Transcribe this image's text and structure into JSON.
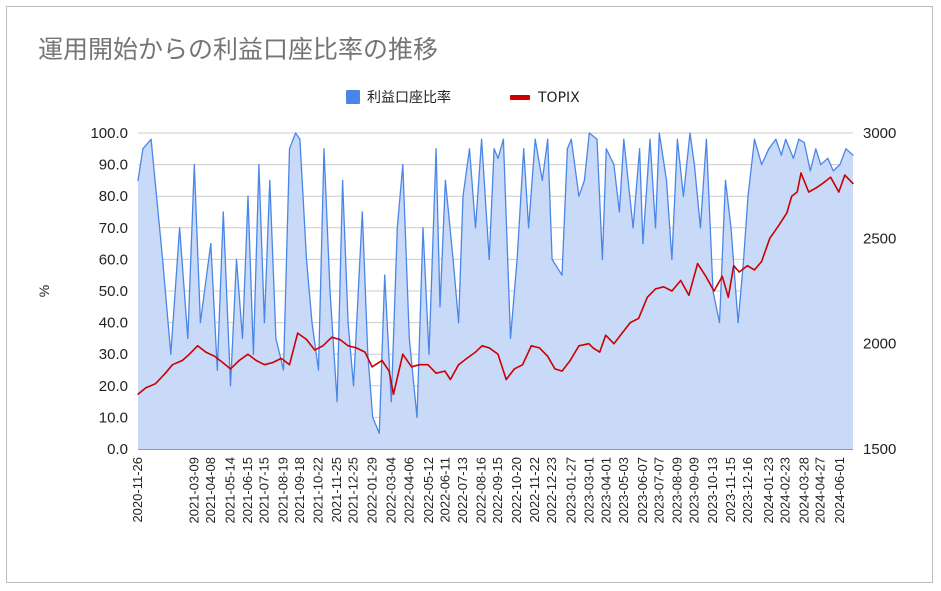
{
  "chart_data": {
    "type": "line",
    "title": "運用開始からの利益口座比率の推移",
    "ylabel_left": "%",
    "ylim_left": [
      0,
      100
    ],
    "yticks_left": [
      "0.0",
      "10.0",
      "20.0",
      "30.0",
      "40.0",
      "50.0",
      "60.0",
      "70.0",
      "80.0",
      "90.0",
      "100.0"
    ],
    "ylim_right": [
      1500,
      3000
    ],
    "yticks_right": [
      "1500",
      "2000",
      "2500",
      "3000"
    ],
    "xlim": [
      "2020-11-26",
      "2024-06-25"
    ],
    "x_tick_labels": [
      "2020-11-26",
      "2021-03-09",
      "2021-04-08",
      "2021-05-14",
      "2021-06-15",
      "2021-07-15",
      "2021-08-19",
      "2021-09-18",
      "2021-10-22",
      "2021-11-25",
      "2021-12-25",
      "2022-01-29",
      "2022-03-04",
      "2022-04-06",
      "2022-05-12",
      "2022-06-11",
      "2022-07-13",
      "2022-08-16",
      "2022-09-15",
      "2022-10-20",
      "2022-11-22",
      "2022-12-23",
      "2023-01-27",
      "2023-03-01",
      "2023-04-01",
      "2023-05-03",
      "2023-06-07",
      "2023-07-07",
      "2023-08-09",
      "2023-09-09",
      "2023-10-13",
      "2023-11-15",
      "2023-12-16",
      "2024-01-23",
      "2024-02-23",
      "2024-03-28",
      "2024-04-27",
      "2024-06-01"
    ],
    "grid": true,
    "legend_position": "top",
    "series": [
      {
        "name": "利益口座比率",
        "axis": "left",
        "style": "area",
        "color": "#4a86e8",
        "fill": "#c9daf8",
        "x": [
          "2020-11-26",
          "2020-12-05",
          "2020-12-20",
          "2021-01-10",
          "2021-01-25",
          "2021-02-10",
          "2021-02-25",
          "2021-03-09",
          "2021-03-20",
          "2021-04-08",
          "2021-04-20",
          "2021-05-01",
          "2021-05-14",
          "2021-05-25",
          "2021-06-05",
          "2021-06-15",
          "2021-06-25",
          "2021-07-05",
          "2021-07-15",
          "2021-07-25",
          "2021-08-05",
          "2021-08-19",
          "2021-08-30",
          "2021-09-10",
          "2021-09-18",
          "2021-09-30",
          "2021-10-10",
          "2021-10-22",
          "2021-11-01",
          "2021-11-12",
          "2021-11-25",
          "2021-12-05",
          "2021-12-15",
          "2021-12-25",
          "2022-01-10",
          "2022-01-20",
          "2022-01-29",
          "2022-02-10",
          "2022-02-20",
          "2022-03-04",
          "2022-03-15",
          "2022-03-25",
          "2022-04-06",
          "2022-04-20",
          "2022-05-01",
          "2022-05-12",
          "2022-05-25",
          "2022-06-01",
          "2022-06-11",
          "2022-06-25",
          "2022-07-05",
          "2022-07-13",
          "2022-07-25",
          "2022-08-05",
          "2022-08-16",
          "2022-08-30",
          "2022-09-08",
          "2022-09-15",
          "2022-09-25",
          "2022-10-08",
          "2022-10-20",
          "2022-11-01",
          "2022-11-10",
          "2022-11-22",
          "2022-12-05",
          "2022-12-15",
          "2022-12-23",
          "2023-01-10",
          "2023-01-20",
          "2023-01-27",
          "2023-02-10",
          "2023-02-20",
          "2023-03-01",
          "2023-03-15",
          "2023-03-25",
          "2023-04-01",
          "2023-04-15",
          "2023-04-25",
          "2023-05-03",
          "2023-05-20",
          "2023-06-01",
          "2023-06-07",
          "2023-06-20",
          "2023-06-30",
          "2023-07-07",
          "2023-07-20",
          "2023-07-30",
          "2023-08-09",
          "2023-08-20",
          "2023-09-01",
          "2023-09-09",
          "2023-09-20",
          "2023-10-01",
          "2023-10-13",
          "2023-10-25",
          "2023-11-05",
          "2023-11-15",
          "2023-11-28",
          "2023-12-08",
          "2023-12-16",
          "2023-12-28",
          "2024-01-10",
          "2024-01-23",
          "2024-02-05",
          "2024-02-15",
          "2024-02-23",
          "2024-03-08",
          "2024-03-18",
          "2024-03-28",
          "2024-04-08",
          "2024-04-18",
          "2024-04-27",
          "2024-05-10",
          "2024-05-20",
          "2024-06-01",
          "2024-06-12",
          "2024-06-25"
        ],
        "values": [
          85,
          95,
          98,
          60,
          30,
          70,
          35,
          90,
          40,
          65,
          25,
          75,
          20,
          60,
          35,
          80,
          30,
          90,
          40,
          85,
          35,
          25,
          95,
          100,
          98,
          60,
          40,
          25,
          95,
          50,
          15,
          85,
          40,
          20,
          75,
          30,
          10,
          5,
          55,
          15,
          70,
          90,
          35,
          10,
          70,
          30,
          95,
          45,
          85,
          60,
          40,
          80,
          95,
          70,
          98,
          60,
          95,
          92,
          98,
          35,
          60,
          95,
          70,
          98,
          85,
          98,
          60,
          55,
          95,
          98,
          80,
          85,
          100,
          98,
          60,
          95,
          90,
          75,
          98,
          70,
          95,
          65,
          98,
          70,
          100,
          85,
          60,
          98,
          80,
          100,
          90,
          70,
          98,
          50,
          40,
          85,
          70,
          40,
          60,
          80,
          98,
          90,
          95,
          98,
          93,
          98,
          92,
          98,
          97,
          88,
          95,
          90,
          92,
          88,
          90,
          95,
          93
        ]
      },
      {
        "name": "TOPIX",
        "axis": "right",
        "style": "line",
        "color": "#cc0000",
        "x": [
          "2020-11-26",
          "2020-12-10",
          "2020-12-28",
          "2021-01-15",
          "2021-01-28",
          "2021-02-15",
          "2021-02-28",
          "2021-03-15",
          "2021-03-30",
          "2021-04-15",
          "2021-04-30",
          "2021-05-14",
          "2021-05-30",
          "2021-06-15",
          "2021-06-30",
          "2021-07-15",
          "2021-07-30",
          "2021-08-15",
          "2021-08-30",
          "2021-09-14",
          "2021-09-30",
          "2021-10-15",
          "2021-10-30",
          "2021-11-15",
          "2021-11-30",
          "2021-12-15",
          "2021-12-30",
          "2022-01-15",
          "2022-01-28",
          "2022-02-15",
          "2022-02-28",
          "2022-03-08",
          "2022-03-25",
          "2022-04-10",
          "2022-04-25",
          "2022-05-10",
          "2022-05-25",
          "2022-06-10",
          "2022-06-20",
          "2022-07-05",
          "2022-07-20",
          "2022-08-05",
          "2022-08-17",
          "2022-08-30",
          "2022-09-15",
          "2022-09-30",
          "2022-10-15",
          "2022-10-30",
          "2022-11-15",
          "2022-11-30",
          "2022-12-15",
          "2022-12-28",
          "2023-01-10",
          "2023-01-25",
          "2023-02-10",
          "2023-02-28",
          "2023-03-08",
          "2023-03-20",
          "2023-03-31",
          "2023-04-15",
          "2023-04-30",
          "2023-05-15",
          "2023-05-30",
          "2023-06-15",
          "2023-06-30",
          "2023-07-15",
          "2023-07-30",
          "2023-08-15",
          "2023-08-30",
          "2023-09-15",
          "2023-09-30",
          "2023-10-15",
          "2023-10-30",
          "2023-11-10",
          "2023-11-20",
          "2023-11-30",
          "2023-12-15",
          "2023-12-28",
          "2024-01-10",
          "2024-01-25",
          "2024-02-10",
          "2024-02-25",
          "2024-03-05",
          "2024-03-15",
          "2024-03-22",
          "2024-04-05",
          "2024-04-19",
          "2024-04-30",
          "2024-05-15",
          "2024-05-30",
          "2024-06-10",
          "2024-06-25"
        ],
        "values": [
          1760,
          1790,
          1810,
          1860,
          1900,
          1920,
          1950,
          1990,
          1960,
          1940,
          1910,
          1880,
          1920,
          1950,
          1920,
          1900,
          1910,
          1930,
          1900,
          2050,
          2020,
          1970,
          1990,
          2030,
          2020,
          1990,
          1980,
          1960,
          1890,
          1920,
          1870,
          1760,
          1950,
          1890,
          1900,
          1900,
          1860,
          1870,
          1830,
          1900,
          1930,
          1960,
          1990,
          1980,
          1950,
          1830,
          1880,
          1900,
          1990,
          1980,
          1940,
          1880,
          1870,
          1920,
          1990,
          2000,
          1980,
          1960,
          2040,
          2000,
          2050,
          2100,
          2120,
          2220,
          2260,
          2270,
          2250,
          2300,
          2230,
          2380,
          2320,
          2250,
          2320,
          2220,
          2370,
          2340,
          2370,
          2350,
          2390,
          2500,
          2560,
          2620,
          2700,
          2720,
          2810,
          2720,
          2740,
          2760,
          2790,
          2720,
          2800,
          2760
        ]
      }
    ]
  }
}
